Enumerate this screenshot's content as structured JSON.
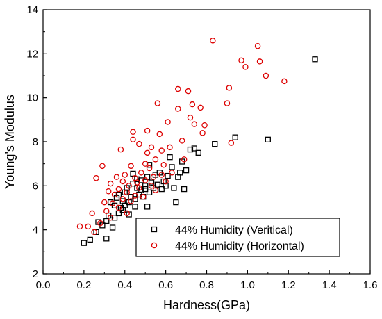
{
  "chart_data": {
    "type": "scatter",
    "xlabel": "Hardness(GPa)",
    "ylabel": "Young's Modulus",
    "xlim": [
      0.0,
      1.6
    ],
    "ylim": [
      2,
      14
    ],
    "x_ticks": [
      "0.0",
      "0.2",
      "0.4",
      "0.6",
      "0.8",
      "1.0",
      "1.2",
      "1.4",
      "1.6"
    ],
    "y_ticks": [
      "2",
      "4",
      "6",
      "8",
      "10",
      "12",
      "14"
    ],
    "grid": false,
    "legend_position": "bottom-right",
    "series": [
      {
        "name": "44% Humidity (Veritical)",
        "marker": "square",
        "color": "#000000",
        "points": [
          [
            0.2,
            3.4
          ],
          [
            0.23,
            3.55
          ],
          [
            0.26,
            3.9
          ],
          [
            0.27,
            4.35
          ],
          [
            0.29,
            4.2
          ],
          [
            0.31,
            3.6
          ],
          [
            0.31,
            4.4
          ],
          [
            0.32,
            4.65
          ],
          [
            0.33,
            5.25
          ],
          [
            0.34,
            4.1
          ],
          [
            0.35,
            4.55
          ],
          [
            0.35,
            5.1
          ],
          [
            0.36,
            5.45
          ],
          [
            0.37,
            4.75
          ],
          [
            0.37,
            5.6
          ],
          [
            0.38,
            5.0
          ],
          [
            0.39,
            4.9
          ],
          [
            0.39,
            5.3
          ],
          [
            0.4,
            5.1
          ],
          [
            0.4,
            5.7
          ],
          [
            0.41,
            5.9
          ],
          [
            0.42,
            5.25
          ],
          [
            0.42,
            4.7
          ],
          [
            0.43,
            5.5
          ],
          [
            0.44,
            6.1
          ],
          [
            0.44,
            6.55
          ],
          [
            0.45,
            5.4
          ],
          [
            0.45,
            5.05
          ],
          [
            0.46,
            5.9
          ],
          [
            0.46,
            6.3
          ],
          [
            0.47,
            5.6
          ],
          [
            0.48,
            5.8
          ],
          [
            0.48,
            6.25
          ],
          [
            0.49,
            5.5
          ],
          [
            0.5,
            5.85
          ],
          [
            0.5,
            6.0
          ],
          [
            0.51,
            5.05
          ],
          [
            0.51,
            6.4
          ],
          [
            0.52,
            6.95
          ],
          [
            0.52,
            5.7
          ],
          [
            0.53,
            6.15
          ],
          [
            0.54,
            5.9
          ],
          [
            0.55,
            6.5
          ],
          [
            0.56,
            6.05
          ],
          [
            0.57,
            6.6
          ],
          [
            0.58,
            5.85
          ],
          [
            0.59,
            6.2
          ],
          [
            0.6,
            6.0
          ],
          [
            0.61,
            6.45
          ],
          [
            0.62,
            7.3
          ],
          [
            0.63,
            6.85
          ],
          [
            0.64,
            5.9
          ],
          [
            0.65,
            5.25
          ],
          [
            0.66,
            6.4
          ],
          [
            0.67,
            6.6
          ],
          [
            0.68,
            7.1
          ],
          [
            0.69,
            5.85
          ],
          [
            0.7,
            6.7
          ],
          [
            0.72,
            7.65
          ],
          [
            0.74,
            7.7
          ],
          [
            0.76,
            7.5
          ],
          [
            0.84,
            7.9
          ],
          [
            0.94,
            8.2
          ],
          [
            1.1,
            8.1
          ],
          [
            1.33,
            11.75
          ]
        ]
      },
      {
        "name": "44% Humidity (Horizontal)",
        "marker": "circle",
        "color": "#dd0000",
        "points": [
          [
            0.18,
            4.15
          ],
          [
            0.22,
            4.15
          ],
          [
            0.24,
            4.75
          ],
          [
            0.25,
            3.9
          ],
          [
            0.26,
            6.35
          ],
          [
            0.28,
            4.3
          ],
          [
            0.29,
            6.9
          ],
          [
            0.3,
            5.25
          ],
          [
            0.31,
            4.85
          ],
          [
            0.32,
            5.75
          ],
          [
            0.33,
            4.55
          ],
          [
            0.33,
            6.1
          ],
          [
            0.34,
            5.2
          ],
          [
            0.35,
            5.6
          ],
          [
            0.36,
            6.4
          ],
          [
            0.37,
            5.0
          ],
          [
            0.37,
            5.85
          ],
          [
            0.38,
            7.65
          ],
          [
            0.39,
            6.2
          ],
          [
            0.39,
            5.4
          ],
          [
            0.4,
            6.5
          ],
          [
            0.41,
            5.7
          ],
          [
            0.41,
            4.75
          ],
          [
            0.42,
            6.0
          ],
          [
            0.43,
            6.9
          ],
          [
            0.43,
            5.3
          ],
          [
            0.44,
            8.1
          ],
          [
            0.44,
            8.45
          ],
          [
            0.45,
            6.35
          ],
          [
            0.45,
            5.55
          ],
          [
            0.46,
            6.15
          ],
          [
            0.47,
            7.9
          ],
          [
            0.47,
            5.9
          ],
          [
            0.48,
            6.6
          ],
          [
            0.49,
            5.5
          ],
          [
            0.5,
            7.0
          ],
          [
            0.5,
            6.25
          ],
          [
            0.51,
            7.5
          ],
          [
            0.51,
            8.5
          ],
          [
            0.52,
            6.8
          ],
          [
            0.53,
            6.0
          ],
          [
            0.53,
            7.75
          ],
          [
            0.54,
            6.4
          ],
          [
            0.55,
            7.2
          ],
          [
            0.55,
            5.8
          ],
          [
            0.56,
            9.75
          ],
          [
            0.57,
            8.35
          ],
          [
            0.58,
            6.5
          ],
          [
            0.58,
            7.6
          ],
          [
            0.59,
            6.95
          ],
          [
            0.6,
            6.2
          ],
          [
            0.61,
            8.9
          ],
          [
            0.62,
            7.75
          ],
          [
            0.63,
            6.6
          ],
          [
            0.66,
            10.4
          ],
          [
            0.66,
            9.5
          ],
          [
            0.68,
            8.05
          ],
          [
            0.69,
            7.2
          ],
          [
            0.71,
            10.3
          ],
          [
            0.72,
            9.1
          ],
          [
            0.73,
            9.7
          ],
          [
            0.74,
            8.8
          ],
          [
            0.77,
            9.55
          ],
          [
            0.78,
            8.4
          ],
          [
            0.79,
            8.75
          ],
          [
            0.83,
            12.6
          ],
          [
            0.9,
            9.75
          ],
          [
            0.91,
            10.45
          ],
          [
            0.92,
            7.95
          ],
          [
            0.97,
            11.7
          ],
          [
            0.99,
            11.4
          ],
          [
            1.05,
            12.35
          ],
          [
            1.06,
            11.65
          ],
          [
            1.09,
            11.0
          ],
          [
            1.18,
            10.75
          ]
        ]
      }
    ]
  }
}
